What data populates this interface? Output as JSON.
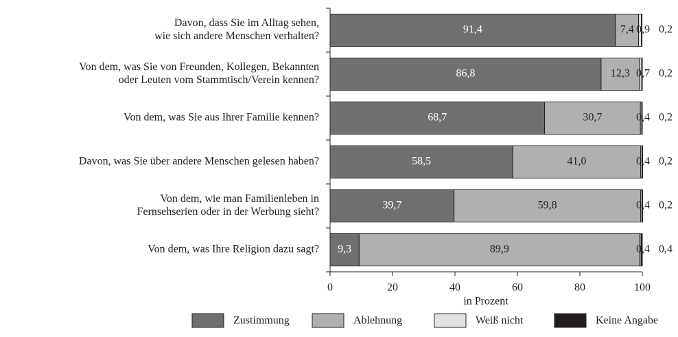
{
  "chart_data": {
    "type": "stacked-bar-horizontal",
    "categories": [
      [
        "Davon, dass Sie im Alltag sehen,",
        "wie sich andere Menschen verhalten?"
      ],
      [
        "Von dem, was Sie von Freunden, Kollegen, Bekannten",
        "oder Leuten vom Stammtisch/Verein kennen?"
      ],
      [
        "Von dem, was Sie aus Ihrer Familie kennen?"
      ],
      [
        "Davon, was Sie über andere Menschen gelesen haben?"
      ],
      [
        "Von dem, wie man Familienleben in",
        "Fernsehserien oder in der Werbung sieht?"
      ],
      [
        "Von dem, was Ihre Religion dazu sagt?"
      ]
    ],
    "series": [
      {
        "name": "Zustimmung",
        "color": "#707070",
        "values": [
          91.4,
          86.8,
          68.7,
          58.5,
          39.7,
          9.3
        ],
        "value_labels": [
          "91,4",
          "86,8",
          "68,7",
          "58,5",
          "39,7",
          "9,3"
        ]
      },
      {
        "name": "Ablehnung",
        "color": "#b0b0b0",
        "values": [
          7.4,
          12.3,
          30.7,
          41.0,
          59.8,
          89.9
        ],
        "value_labels": [
          "7,4",
          "12,3",
          "30,7",
          "41,0",
          "59,8",
          "89,9"
        ]
      },
      {
        "name": "Weiß nicht",
        "color": "#e2e2e2",
        "values": [
          0.9,
          0.7,
          0.4,
          0.4,
          0.4,
          0.4
        ],
        "value_labels": [
          "0,9",
          "0,7",
          "0,4",
          "0,4",
          "0,4",
          "0,4"
        ]
      },
      {
        "name": "Keine Angabe",
        "color": "#231f20",
        "values": [
          0.2,
          0.2,
          0.2,
          0.2,
          0.2,
          0.4
        ],
        "value_labels": [
          "0,2",
          "0,2",
          "0,2",
          "0,2",
          "0,2",
          "0,4"
        ]
      }
    ],
    "xlim": [
      0,
      100
    ],
    "xticks": [
      0,
      20,
      40,
      60,
      80,
      100
    ],
    "xlabel": "in Prozent",
    "legend": "bottom"
  }
}
